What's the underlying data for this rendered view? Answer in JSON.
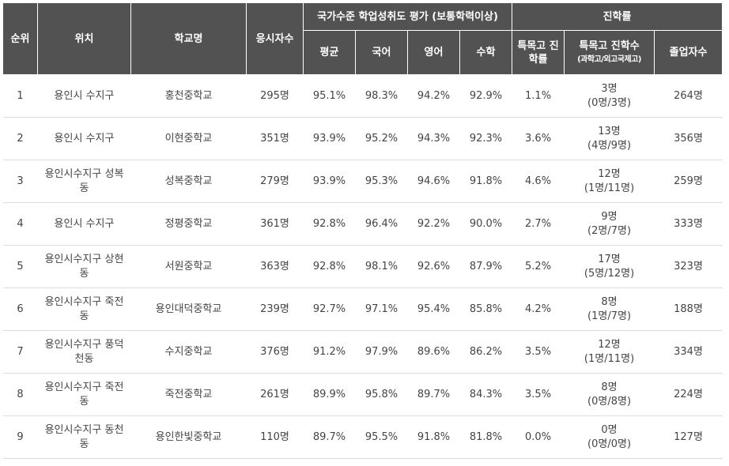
{
  "headers": {
    "rank": "순위",
    "location": "위치",
    "school": "학교명",
    "takers": "응시자수",
    "national_group": "국가수준 학업성취도 평가 (보통학력이상)",
    "average": "평균",
    "korean": "국어",
    "english": "영어",
    "math": "수학",
    "advancement_group": "진학률",
    "special_rate": "특목고 진학률",
    "special_count": "특목고 진학수",
    "special_count_sub": "(과학고/외고국제고)",
    "graduates": "졸업자수"
  },
  "rows": [
    {
      "rank": "1",
      "location": "용인시 수지구",
      "school": "홍천중학교",
      "takers": "295명",
      "avg": "95.1%",
      "kor": "98.3%",
      "eng": "94.2%",
      "math": "92.9%",
      "special_rate": "1.1%",
      "adm_total": "3명",
      "adm_detail": "(0명/3명)",
      "graduates": "264명"
    },
    {
      "rank": "2",
      "location": "용인시 수지구",
      "school": "이현중학교",
      "takers": "351명",
      "avg": "93.9%",
      "kor": "95.2%",
      "eng": "94.3%",
      "math": "92.3%",
      "special_rate": "3.6%",
      "adm_total": "13명",
      "adm_detail": "(4명/9명)",
      "graduates": "356명"
    },
    {
      "rank": "3",
      "location": "용인시수지구 성복동",
      "school": "성복중학교",
      "takers": "279명",
      "avg": "93.9%",
      "kor": "95.3%",
      "eng": "94.6%",
      "math": "91.8%",
      "special_rate": "4.6%",
      "adm_total": "12명",
      "adm_detail": "(1명/11명)",
      "graduates": "259명"
    },
    {
      "rank": "4",
      "location": "용인시 수지구",
      "school": "정평중학교",
      "takers": "361명",
      "avg": "92.8%",
      "kor": "96.4%",
      "eng": "92.2%",
      "math": "90.0%",
      "special_rate": "2.7%",
      "adm_total": "9명",
      "adm_detail": "(2명/7명)",
      "graduates": "333명"
    },
    {
      "rank": "5",
      "location": "용인시수지구 상현동",
      "school": "서원중학교",
      "takers": "363명",
      "avg": "92.8%",
      "kor": "98.1%",
      "eng": "92.6%",
      "math": "87.9%",
      "special_rate": "5.2%",
      "adm_total": "17명",
      "adm_detail": "(5명/12명)",
      "graduates": "323명"
    },
    {
      "rank": "6",
      "location": "용인시수지구 죽전동",
      "school": "용인대덕중학교",
      "takers": "239명",
      "avg": "92.7%",
      "kor": "97.1%",
      "eng": "95.4%",
      "math": "85.8%",
      "special_rate": "4.2%",
      "adm_total": "8명",
      "adm_detail": "(1명/7명)",
      "graduates": "188명"
    },
    {
      "rank": "7",
      "location": "용인시수지구 풍덕천동",
      "school": "수지중학교",
      "takers": "376명",
      "avg": "91.2%",
      "kor": "97.9%",
      "eng": "89.6%",
      "math": "86.2%",
      "special_rate": "3.5%",
      "adm_total": "12명",
      "adm_detail": "(1명/11명)",
      "graduates": "334명"
    },
    {
      "rank": "8",
      "location": "용인시수지구 죽전동",
      "school": "죽전중학교",
      "takers": "261명",
      "avg": "89.9%",
      "kor": "95.8%",
      "eng": "89.7%",
      "math": "84.3%",
      "special_rate": "3.5%",
      "adm_total": "8명",
      "adm_detail": "(0명/8명)",
      "graduates": "224명"
    },
    {
      "rank": "9",
      "location": "용인시수지구 동천동",
      "school": "용인한빛중학교",
      "takers": "110명",
      "avg": "89.7%",
      "kor": "95.5%",
      "eng": "91.8%",
      "math": "81.8%",
      "special_rate": "0.0%",
      "adm_total": "0명",
      "adm_detail": "(0명/0명)",
      "graduates": "127명"
    }
  ]
}
